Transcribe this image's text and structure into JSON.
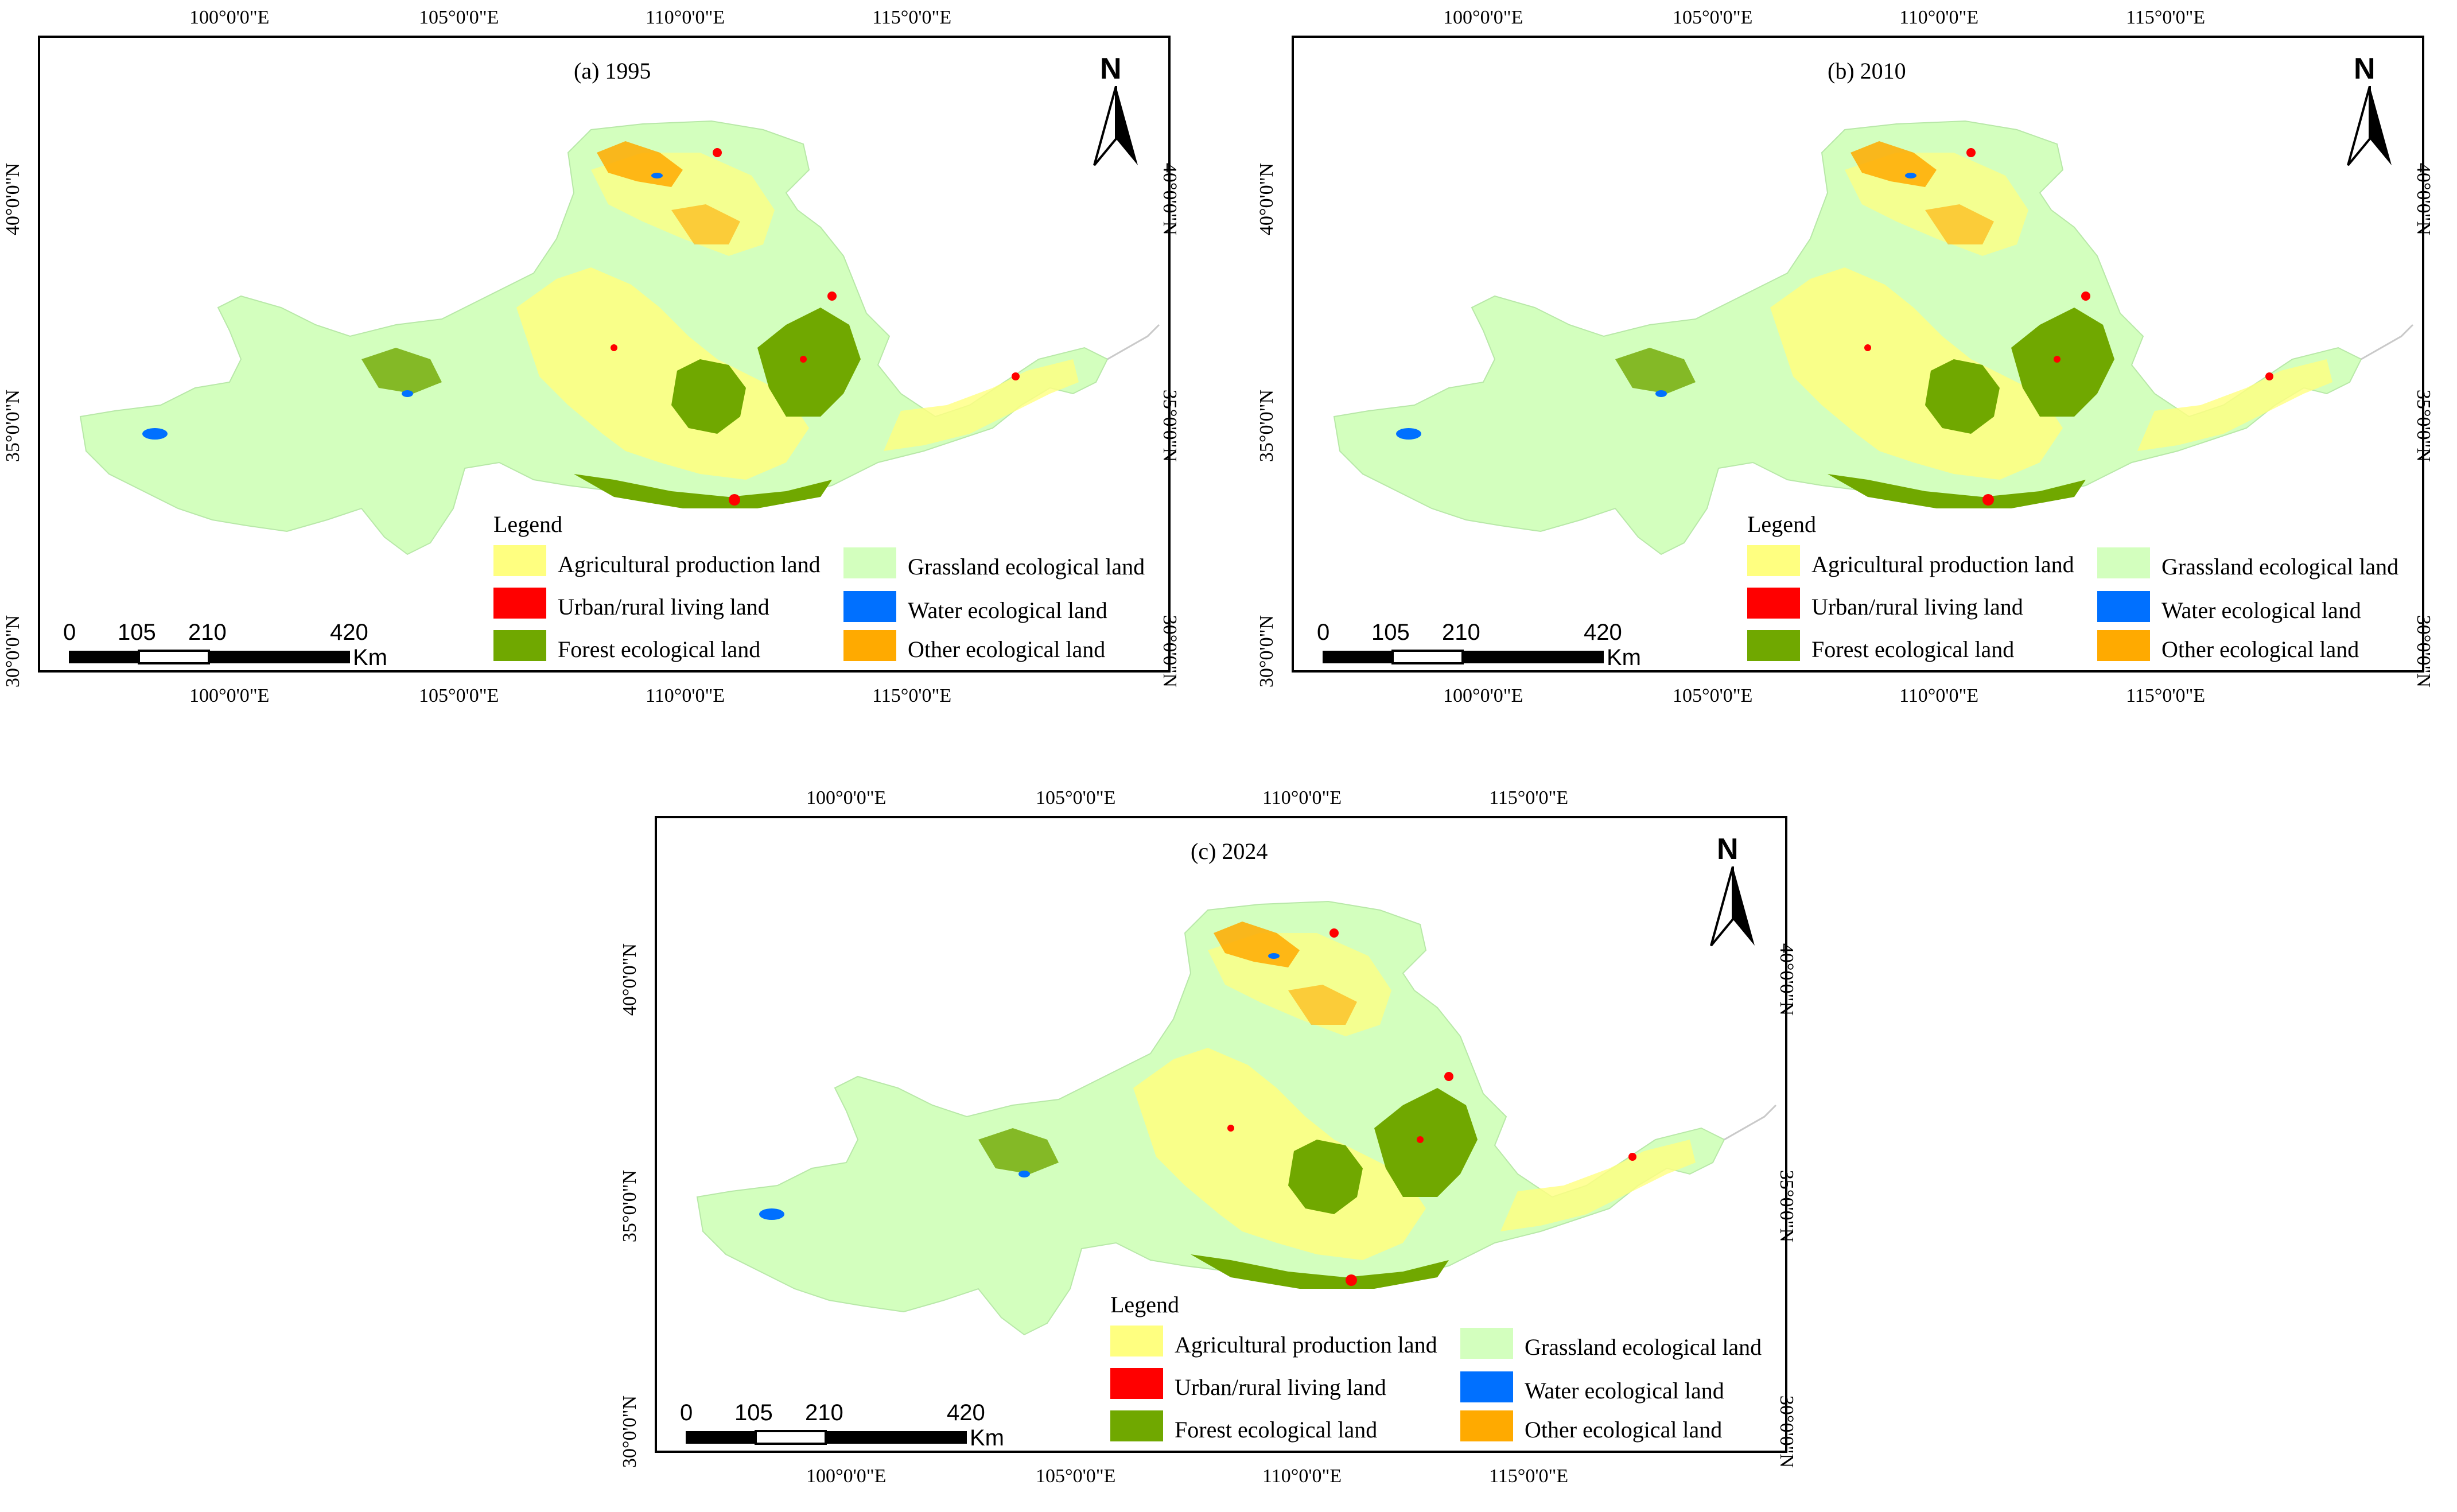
{
  "panels": [
    {
      "title": "(a) 1995",
      "region": "1995"
    },
    {
      "title": "(b) 2010",
      "region": "2010"
    },
    {
      "title": "(c) 2024",
      "region": "2024"
    }
  ],
  "axes": {
    "lon_labels": [
      "100°0'0\"E",
      "105°0'0\"E",
      "110°0'0\"E",
      "115°0'0\"E"
    ],
    "lat_labels": [
      "40°0'0\"N",
      "35°0'0\"N",
      "30°0'0\"N"
    ]
  },
  "legend": {
    "title": "Legend",
    "items": [
      {
        "label": "Agricultural production land",
        "color": "#ffff80"
      },
      {
        "label": "Urban/rural living land",
        "color": "#ff0000"
      },
      {
        "label": "Forest ecological land",
        "color": "#70a800"
      },
      {
        "label": "Grassland ecological land",
        "color": "#d3ffbe"
      },
      {
        "label": "Water ecological land",
        "color": "#0070ff"
      },
      {
        "label": "Other ecological land",
        "color": "#ffaa00"
      }
    ]
  },
  "scale_bar": {
    "ticks": [
      "0",
      "105",
      "210",
      "420"
    ],
    "unit": "Km"
  },
  "north_arrow": {
    "letter": "N",
    "icon": "north-arrow-icon"
  }
}
